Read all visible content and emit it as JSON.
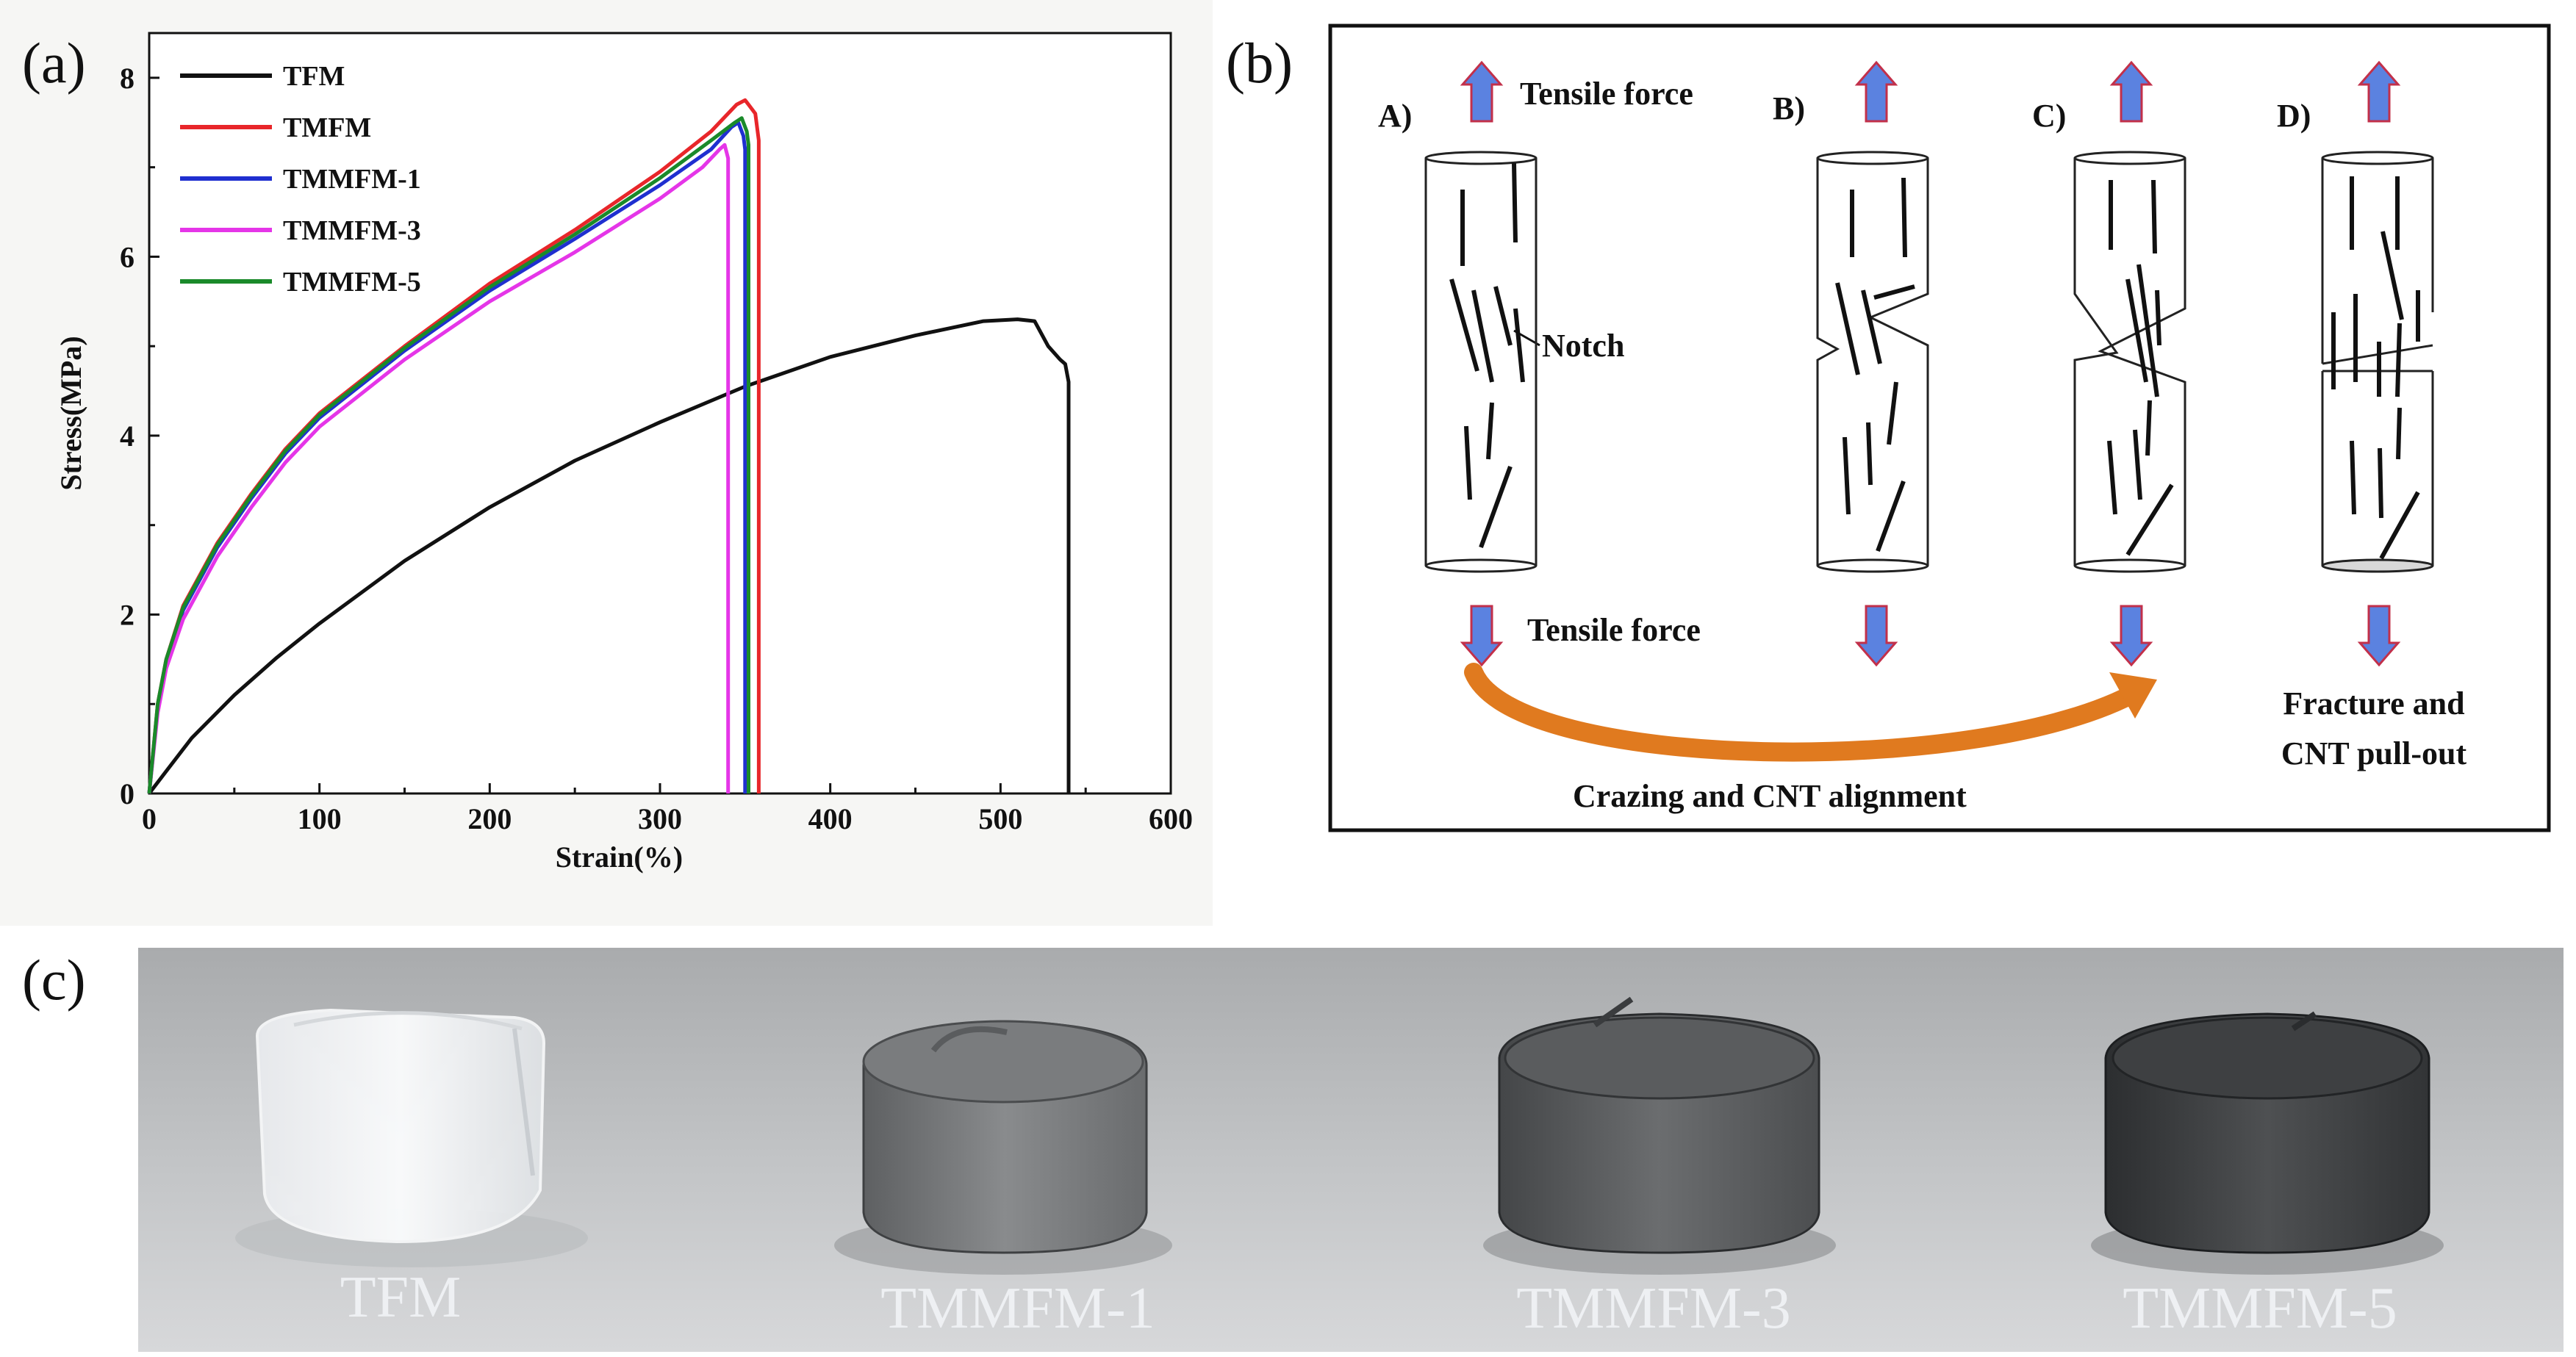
{
  "panels": {
    "a": "(a)",
    "b": "(b)",
    "c": "(c)"
  },
  "chart_data": {
    "type": "line",
    "title": "",
    "xlabel": "Strain(%)",
    "ylabel": "Stress(MPa)",
    "xlim": [
      0,
      600
    ],
    "ylim": [
      0,
      8.5
    ],
    "xticks": [
      0,
      100,
      200,
      300,
      400,
      500,
      600
    ],
    "yticks": [
      0,
      2,
      4,
      6,
      8
    ],
    "grid": false,
    "legend": "top-left",
    "series": [
      {
        "name": "TFM",
        "color": "#111111",
        "x": [
          0,
          10,
          25,
          50,
          75,
          100,
          150,
          200,
          250,
          300,
          350,
          400,
          450,
          490,
          510,
          520,
          528,
          535,
          538,
          540,
          540
        ],
        "y": [
          0,
          0.25,
          0.62,
          1.1,
          1.52,
          1.9,
          2.6,
          3.2,
          3.72,
          4.15,
          4.55,
          4.88,
          5.12,
          5.28,
          5.3,
          5.28,
          5.0,
          4.85,
          4.8,
          4.6,
          0
        ]
      },
      {
        "name": "TMFM",
        "color": "#e8262a",
        "x": [
          0,
          5,
          10,
          20,
          40,
          60,
          80,
          100,
          150,
          200,
          250,
          300,
          330,
          345,
          350,
          352,
          356,
          358,
          358
        ],
        "y": [
          0,
          1.0,
          1.5,
          2.1,
          2.8,
          3.35,
          3.85,
          4.25,
          5.0,
          5.7,
          6.3,
          6.95,
          7.4,
          7.7,
          7.75,
          7.7,
          7.6,
          7.3,
          0
        ]
      },
      {
        "name": "TMMFM-1",
        "color": "#1f2fd0",
        "x": [
          0,
          5,
          10,
          20,
          40,
          60,
          80,
          100,
          150,
          200,
          250,
          300,
          330,
          342,
          346,
          349,
          350,
          350
        ],
        "y": [
          0,
          0.95,
          1.45,
          2.05,
          2.75,
          3.3,
          3.8,
          4.2,
          4.95,
          5.62,
          6.2,
          6.8,
          7.2,
          7.45,
          7.5,
          7.35,
          7.2,
          0
        ]
      },
      {
        "name": "TMMFM-3",
        "color": "#e535e8",
        "x": [
          0,
          5,
          10,
          20,
          40,
          60,
          80,
          100,
          150,
          200,
          250,
          300,
          325,
          335,
          338,
          340,
          340
        ],
        "y": [
          0,
          0.9,
          1.4,
          1.95,
          2.65,
          3.2,
          3.7,
          4.1,
          4.85,
          5.5,
          6.05,
          6.65,
          7.0,
          7.2,
          7.25,
          7.1,
          0
        ]
      },
      {
        "name": "TMMFM-5",
        "color": "#1a8a2a",
        "x": [
          0,
          5,
          10,
          20,
          40,
          60,
          80,
          100,
          150,
          200,
          250,
          300,
          330,
          344,
          348,
          351,
          352,
          352
        ],
        "y": [
          0,
          1.0,
          1.5,
          2.08,
          2.78,
          3.33,
          3.83,
          4.23,
          4.98,
          5.66,
          6.25,
          6.88,
          7.3,
          7.5,
          7.55,
          7.4,
          7.25,
          0
        ]
      }
    ]
  },
  "diagram": {
    "stages": [
      "A)",
      "B)",
      "C)",
      "D)"
    ],
    "tensile_top": "Tensile force",
    "tensile_bottom": "Tensile force",
    "notch": "Notch",
    "crazing": "Crazing and CNT alignment",
    "fracture_line1": "Fracture and",
    "fracture_line2": "CNT pull-out",
    "arrow_color": "#5b82e0",
    "arrow_edge": "#c2304a",
    "curve_color": "#e07a1f"
  },
  "photo": {
    "labels": [
      "TFM",
      "TMMFM-1",
      "TMMFM-3",
      "TMMFM-5"
    ]
  }
}
